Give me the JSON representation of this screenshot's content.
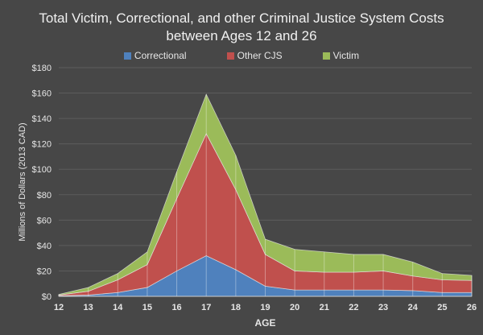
{
  "chart_data": {
    "type": "area",
    "stacked": true,
    "title_line1": "Total Victim, Correctional, and other Criminal Justice System Costs",
    "title_line2": "between Ages 12 and 26",
    "xlabel": "AGE",
    "ylabel": "Millions of Dollars  (2013 CAD)",
    "x": [
      12,
      13,
      14,
      15,
      16,
      17,
      18,
      19,
      20,
      21,
      22,
      23,
      24,
      25,
      26
    ],
    "ylim": [
      0,
      180
    ],
    "yticks": [
      "$0",
      "$20",
      "$40",
      "$60",
      "$80",
      "$100",
      "$120",
      "$140",
      "$160",
      "$180"
    ],
    "grid": true,
    "legend_position": "top",
    "series": [
      {
        "name": "Correctional",
        "color": "#4f81bd",
        "values": [
          0.5,
          1,
          3,
          7,
          20,
          32,
          21,
          8,
          5,
          5,
          5,
          5,
          4.5,
          3,
          3
        ]
      },
      {
        "name": "Other CJS",
        "color": "#c0504d",
        "values": [
          0.5,
          3,
          10,
          18,
          57,
          96,
          63,
          25,
          15,
          14,
          14,
          15,
          11.5,
          10,
          9.5
        ]
      },
      {
        "name": "Victim",
        "color": "#9bbb59",
        "values": [
          0.5,
          3,
          5,
          10,
          21,
          31,
          27,
          12,
          17,
          16,
          14,
          13,
          11,
          5,
          4
        ]
      }
    ]
  }
}
